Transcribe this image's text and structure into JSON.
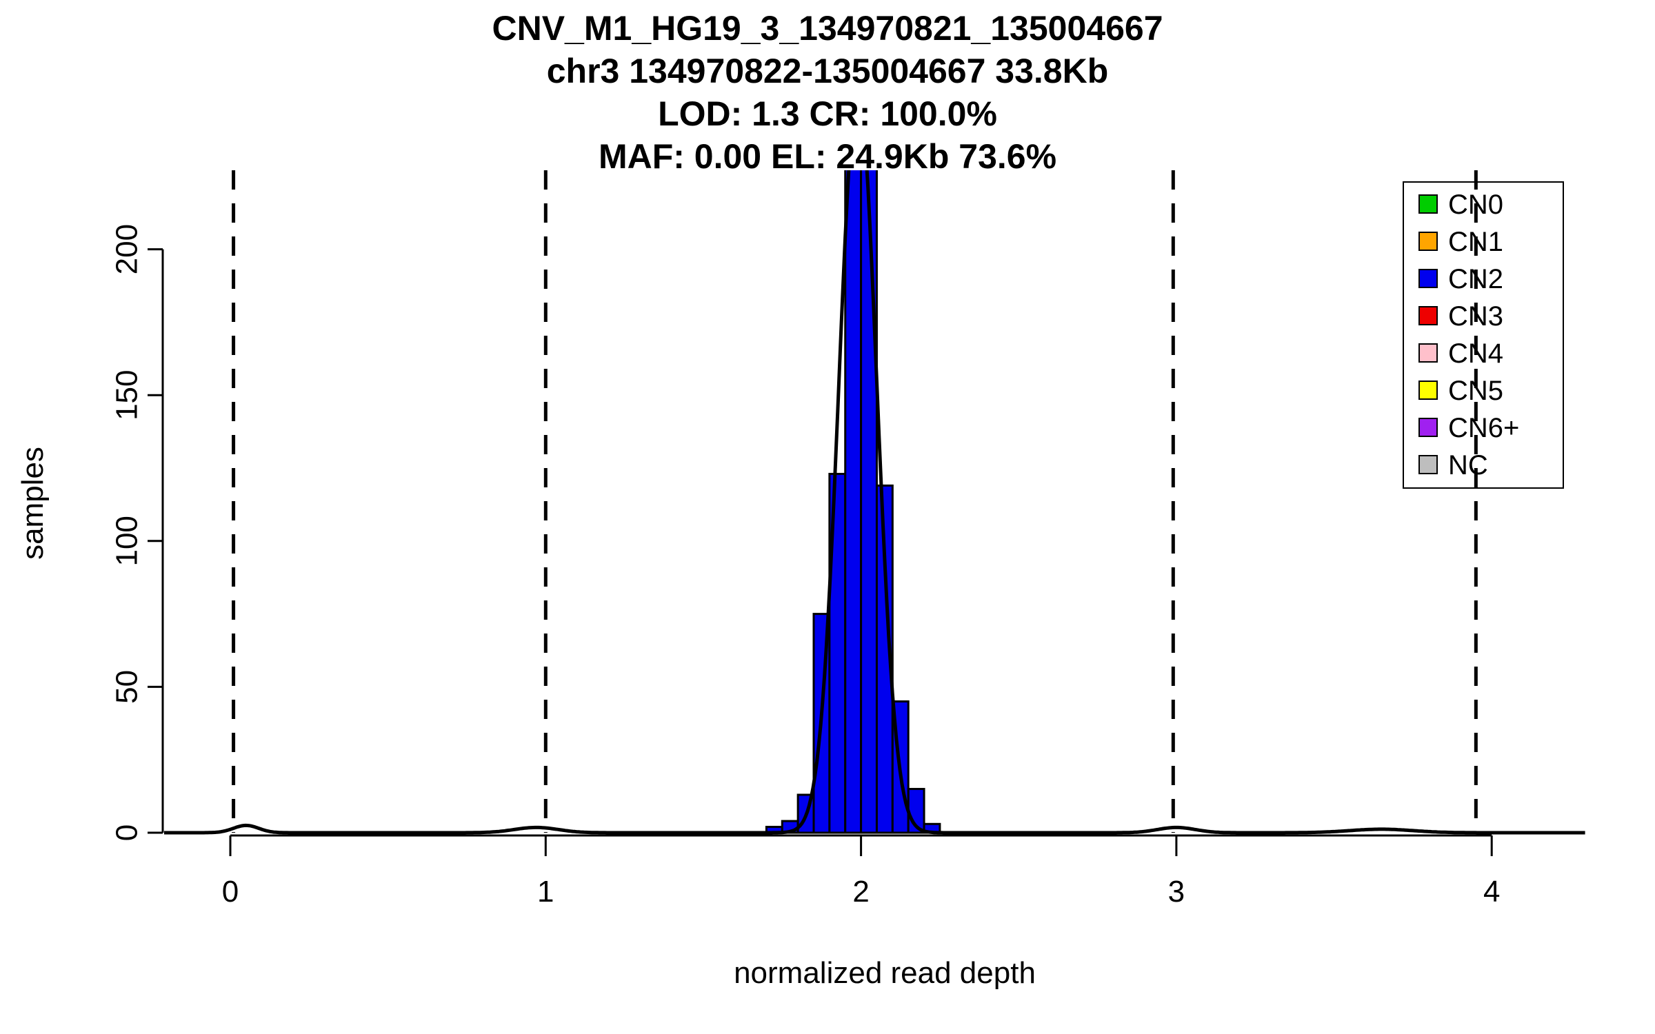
{
  "figure": {
    "background": "#FFFFFF"
  },
  "chart_data": {
    "type": "bar",
    "title_lines": [
      "CNV_M1_HG19_3_134970821_135004667",
      "chr3 134970822-135004667 33.8Kb",
      "LOD: 1.3 CR: 100.0%",
      "MAF: 0.00 EL: 24.9Kb 73.6%"
    ],
    "xlabel": "normalized read depth",
    "ylabel": "samples",
    "x_ticks": [
      0,
      1,
      2,
      3,
      4
    ],
    "y_ticks": [
      0,
      50,
      100,
      150,
      200
    ],
    "xlim": [
      -0.21,
      4.3
    ],
    "ylim": [
      0,
      227
    ],
    "grid": false,
    "histogram": {
      "series_label": "CN2",
      "bin_start": 1.7,
      "bin_width": 0.05,
      "counts": [
        2,
        4,
        13,
        75,
        123,
        240,
        240,
        119,
        45,
        15,
        3
      ],
      "clipped_at_top": true,
      "color": "#0000EE"
    },
    "fit_curve": {
      "mean": 1.99,
      "sd": 0.06,
      "peak": 255,
      "color": "#000000"
    },
    "baseline_bumps": [
      {
        "x": 0.05,
        "h": 2.5,
        "sd": 0.04
      },
      {
        "x": 0.97,
        "h": 1.8,
        "sd": 0.07
      },
      {
        "x": 3.0,
        "h": 1.8,
        "sd": 0.06
      },
      {
        "x": 3.65,
        "h": 1.2,
        "sd": 0.1
      }
    ],
    "dashed_lines_x": [
      0.01,
      1.0,
      1.99,
      2.99,
      3.95
    ],
    "legend": {
      "position": "top-right",
      "items": [
        {
          "label": "CN0",
          "color": "#00CD00"
        },
        {
          "label": "CN1",
          "color": "#FFA500"
        },
        {
          "label": "CN2",
          "color": "#0000EE"
        },
        {
          "label": "CN3",
          "color": "#EE0000"
        },
        {
          "label": "CN4",
          "color": "#FFC0CB"
        },
        {
          "label": "CN5",
          "color": "#FFFF00"
        },
        {
          "label": "CN6+",
          "color": "#A020F0"
        },
        {
          "label": "NC",
          "color": "#BEBEBE"
        }
      ]
    }
  }
}
